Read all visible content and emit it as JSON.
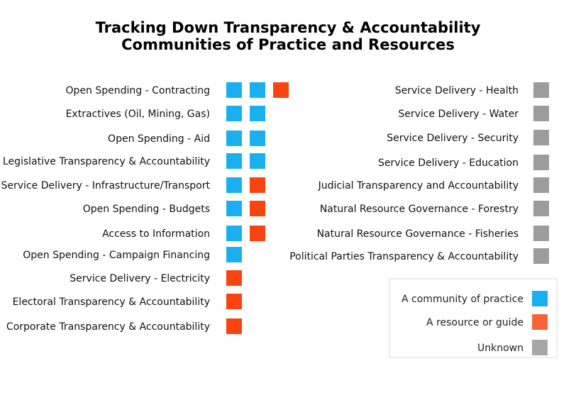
{
  "chart_data": {
    "type": "table",
    "title_lines": [
      "Tracking Down Transparency & Accountability",
      "Communities of Practice and Resources"
    ],
    "colors": {
      "community": "#1ab0ef",
      "resource": "#f8450f",
      "unknown": "#9c9c9c",
      "legend_resource": "#f86436",
      "legend_unknown": "#a8a6a8"
    },
    "left_rows": [
      {
        "label": "Open Spending - Contracting",
        "items": [
          "community",
          "community",
          "resource"
        ]
      },
      {
        "label": "Extractives (Oil, Mining, Gas)",
        "items": [
          "community",
          "community"
        ]
      },
      {
        "label": "Open Spending - Aid",
        "items": [
          "community",
          "community"
        ]
      },
      {
        "label": "Legislative Transparency & Accountability",
        "items": [
          "community",
          "community"
        ]
      },
      {
        "label": "Service Delivery - Infrastructure/Transport",
        "items": [
          "community",
          "resource"
        ]
      },
      {
        "label": "Open Spending - Budgets",
        "items": [
          "community",
          "resource"
        ]
      },
      {
        "label": "Access to Information",
        "items": [
          "community",
          "resource"
        ]
      },
      {
        "label": "Open Spending - Campaign Financing",
        "items": [
          "community"
        ]
      },
      {
        "label": "Service Delivery - Electricity",
        "items": [
          "resource"
        ]
      },
      {
        "label": "Electoral Transparency & Accountability",
        "items": [
          "resource"
        ]
      },
      {
        "label": "Corporate Transparency & Accountability",
        "items": [
          "resource"
        ]
      }
    ],
    "right_rows": [
      {
        "label": "Service Delivery - Health",
        "items": [
          "unknown"
        ]
      },
      {
        "label": "Service Delivery - Water",
        "items": [
          "unknown"
        ]
      },
      {
        "label": "Service Delivery - Security",
        "items": [
          "unknown"
        ]
      },
      {
        "label": "Service Delivery - Education",
        "items": [
          "unknown"
        ]
      },
      {
        "label": "Judicial Transparency and Accountability",
        "items": [
          "unknown"
        ]
      },
      {
        "label": "Natural Resource Governance - Forestry",
        "items": [
          "unknown"
        ]
      },
      {
        "label": "Natural Resource Governance - Fisheries",
        "items": [
          "unknown"
        ]
      },
      {
        "label": "Political Parties Transparency & Accountability",
        "items": [
          "unknown"
        ]
      }
    ],
    "legend": [
      {
        "label": "A community of practice",
        "category": "community"
      },
      {
        "label": "A resource or guide",
        "category": "resource"
      },
      {
        "label": "Unknown",
        "category": "unknown"
      }
    ],
    "legend_placement": "bottom-right"
  }
}
